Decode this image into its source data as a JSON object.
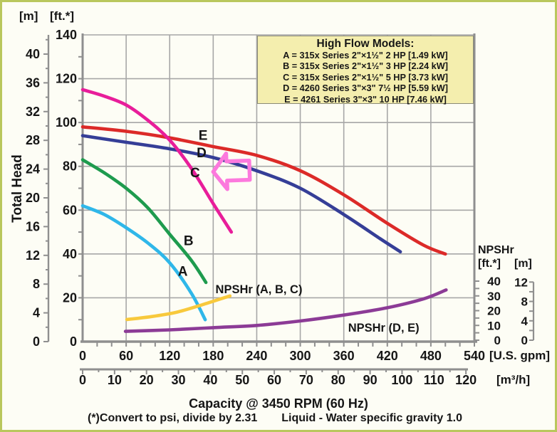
{
  "page": {
    "background": "#fdfdf5",
    "frame_color": "#b9c75d"
  },
  "legend": {
    "title": "High Flow Models:",
    "items": [
      "A = 315x Series 2\"×1½\" 2 HP [1.49 kW]",
      "B = 315x Series 2\"×1½\" 3 HP [2.24 kW]",
      "C = 315x Series 2\"×1½\" 5 HP [3.73 kW]",
      "D = 4260 Series 3\"×3\" 7½ HP [5.59 kW]",
      "E = 4261 Series 3\"×3\" 10 HP [7.46 kW]"
    ],
    "background": "#f4eeae",
    "border_color": "#8a8a76"
  },
  "chart_data": {
    "type": "line",
    "y_title": "Total Head",
    "x_title": "Capacity @ 3450 RPM (60 Hz)",
    "footnotes": [
      "(*)Convert to psi, divide by 2.31",
      "Liquid - Water specific gravity 1.0"
    ],
    "x_axis_gpm": {
      "unit": "[U.S. gpm]",
      "min": 0,
      "max": 540,
      "ticks": [
        0,
        60,
        120,
        180,
        240,
        300,
        360,
        420,
        480,
        540
      ],
      "minor_step": 20
    },
    "x_axis_m3h": {
      "unit": "[m³/h]",
      "min": 0,
      "max": 120,
      "ticks": [
        0,
        10,
        20,
        30,
        40,
        50,
        60,
        70,
        80,
        90,
        100,
        110,
        120
      ],
      "minor_step": 5
    },
    "y_axis_ft": {
      "unit": "[ft.*]",
      "min": 0,
      "max": 140,
      "ticks": [
        140,
        120,
        100,
        80,
        60,
        40,
        20,
        0
      ],
      "minor_step": 10
    },
    "y_axis_m": {
      "unit": "[m]",
      "ticks": [
        40,
        36,
        32,
        28,
        24,
        20,
        16,
        12,
        8,
        4,
        0
      ],
      "minor_step": 2
    },
    "npshr_axis": {
      "title": "NPSHr",
      "unit_ft": "[ft.*]",
      "unit_m": "[m]",
      "ticks_ft": [
        40,
        30,
        20,
        10,
        0
      ],
      "ticks_m": [
        12,
        8,
        4,
        0
      ]
    },
    "grid": true,
    "colors": {
      "grid": "#a7a7a7",
      "axis": "#8f8f8f",
      "text": "#161616"
    },
    "series": [
      {
        "name": "E",
        "label": "E",
        "color": "#dc2a28",
        "axis": "head_ft",
        "label_at": [
          166,
          94
        ],
        "points": [
          [
            0,
            98
          ],
          [
            60,
            96
          ],
          [
            120,
            93
          ],
          [
            180,
            89
          ],
          [
            240,
            85
          ],
          [
            300,
            78
          ],
          [
            360,
            67
          ],
          [
            420,
            54
          ],
          [
            470,
            44
          ],
          [
            500,
            40
          ]
        ]
      },
      {
        "name": "D",
        "label": "D",
        "color": "#353e97",
        "axis": "head_ft",
        "label_at": [
          164,
          86
        ],
        "points": [
          [
            0,
            94
          ],
          [
            60,
            91
          ],
          [
            120,
            88
          ],
          [
            180,
            84
          ],
          [
            240,
            78
          ],
          [
            300,
            70
          ],
          [
            360,
            58
          ],
          [
            410,
            47
          ],
          [
            438,
            41
          ]
        ]
      },
      {
        "name": "C",
        "label": "C",
        "color": "#e81d9a",
        "axis": "head_ft",
        "label_at": [
          155,
          77
        ],
        "points": [
          [
            0,
            115
          ],
          [
            30,
            112
          ],
          [
            60,
            108
          ],
          [
            90,
            101
          ],
          [
            120,
            92
          ],
          [
            150,
            79
          ],
          [
            180,
            63
          ],
          [
            205,
            50
          ]
        ]
      },
      {
        "name": "B",
        "label": "B",
        "color": "#1e9b4e",
        "axis": "head_ft",
        "label_at": [
          146,
          46
        ],
        "points": [
          [
            0,
            83
          ],
          [
            30,
            77
          ],
          [
            60,
            70
          ],
          [
            90,
            61
          ],
          [
            120,
            49
          ],
          [
            150,
            37
          ],
          [
            170,
            27
          ]
        ]
      },
      {
        "name": "A",
        "label": "A",
        "color": "#2fb7e9",
        "axis": "head_ft",
        "label_at": [
          138,
          32
        ],
        "points": [
          [
            0,
            62
          ],
          [
            30,
            58
          ],
          [
            60,
            52
          ],
          [
            90,
            45
          ],
          [
            120,
            36
          ],
          [
            150,
            22
          ],
          [
            169,
            10
          ]
        ]
      },
      {
        "name": "NPSHr (A, B, C)",
        "label": "NPSHr (A, B, C)",
        "color": "#f8c93c",
        "axis": "npshr_ft",
        "label_at": [
          243,
          24
        ],
        "points": [
          [
            61,
            14
          ],
          [
            95,
            16
          ],
          [
            130,
            19
          ],
          [
            165,
            24
          ],
          [
            203,
            30
          ]
        ]
      },
      {
        "name": "NPSHr (D, E)",
        "label": "NPSHr (D, E)",
        "color": "#8c3b96",
        "axis": "npshr_ft",
        "label_at": [
          415,
          6.5
        ],
        "points": [
          [
            59,
            6
          ],
          [
            120,
            7
          ],
          [
            180,
            8.5
          ],
          [
            240,
            10
          ],
          [
            300,
            13
          ],
          [
            360,
            17
          ],
          [
            420,
            22
          ],
          [
            470,
            28
          ],
          [
            501,
            34
          ]
        ]
      }
    ],
    "annotations": [
      {
        "type": "block-arrow-left",
        "color": "#fc79dd",
        "tip_at": [
          180,
          77.5
        ]
      }
    ]
  }
}
